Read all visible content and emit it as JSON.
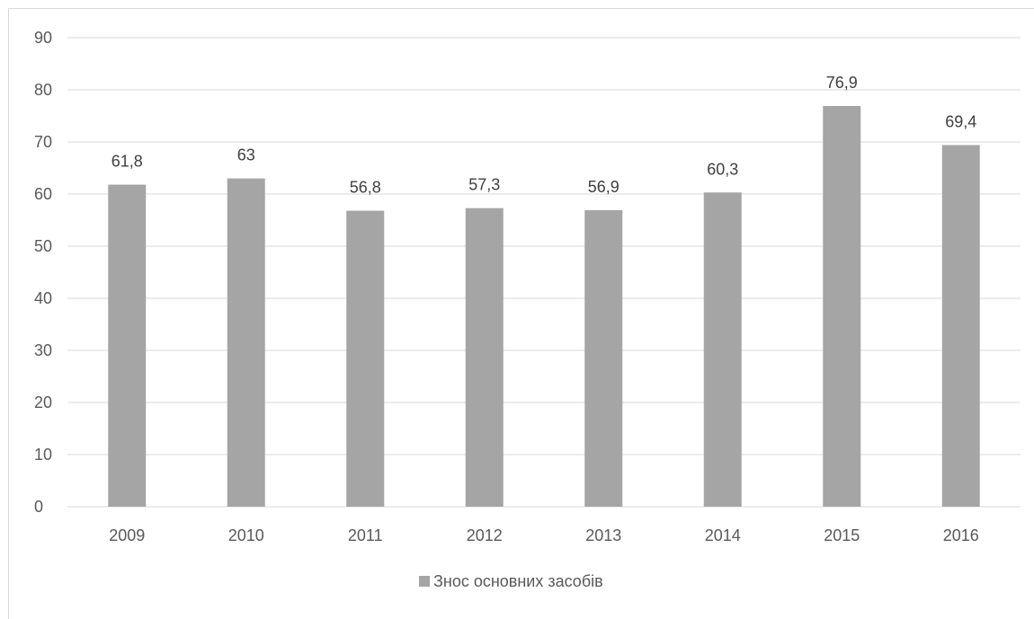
{
  "chart_data": {
    "type": "bar",
    "title": "",
    "xlabel": "",
    "ylabel": "",
    "categories": [
      "2009",
      "2010",
      "2011",
      "2012",
      "2013",
      "2014",
      "2015",
      "2016"
    ],
    "series": [
      {
        "name": "Знос основних засобів",
        "values": [
          61.8,
          63,
          56.8,
          57.3,
          56.9,
          60.3,
          76.9,
          69.4
        ],
        "data_labels": [
          "61,8",
          "63",
          "56,8",
          "57,3",
          "56,9",
          "60,3",
          "76,9",
          "69,4"
        ],
        "color": "#a5a5a5"
      }
    ],
    "ylim": [
      0,
      90
    ],
    "yticks": [
      0,
      10,
      20,
      30,
      40,
      50,
      60,
      70,
      80,
      90
    ],
    "grid": true,
    "legend_position": "bottom",
    "colors": {
      "bar": "#a5a5a5",
      "grid": "#d9d9d9",
      "axis_text": "#595959",
      "label_text": "#404040"
    }
  }
}
